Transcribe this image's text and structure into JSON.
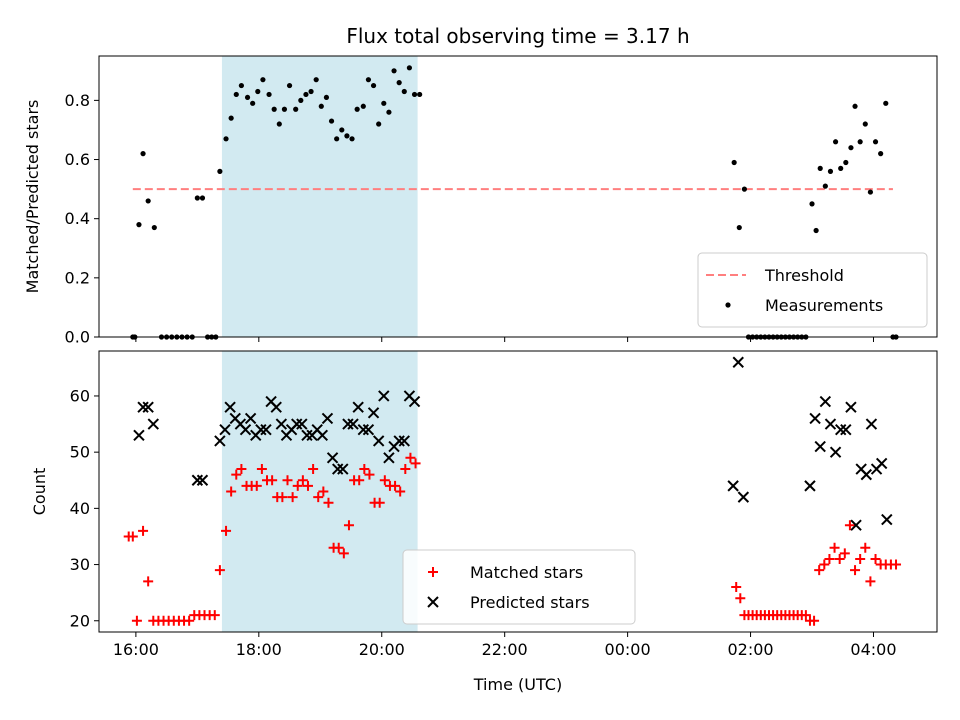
{
  "figure": {
    "title": "Flux total observing time = 3.17 h",
    "xlabel": "Time (UTC)"
  },
  "chart_data": [
    {
      "type": "scatter",
      "ylabel": "Matched/Predicted stars",
      "xlim": [
        "15:24",
        "05:02"
      ],
      "ylim": [
        0,
        0.95
      ],
      "yticks": [
        0.0,
        0.2,
        0.4,
        0.6,
        0.8
      ],
      "xticks": [
        "16:00",
        "18:00",
        "20:00",
        "22:00",
        "00:00",
        "02:00",
        "04:00"
      ],
      "show_xtick_labels": false,
      "shaded_interval": {
        "start": "17:24",
        "end": "20:35",
        "color": "#add8e6"
      },
      "legend_position": "lower right",
      "threshold": {
        "name": "Threshold",
        "value": 0.5,
        "from": "15:57",
        "to": "04:19",
        "color": "#ff7f7f",
        "style": "dashed"
      },
      "series": [
        {
          "name": "Measurements",
          "marker": "dot",
          "color": "#000000",
          "points": [
            [
              "15:57",
              0.0
            ],
            [
              "15:59",
              0.0
            ],
            [
              "16:03",
              0.38
            ],
            [
              "16:07",
              0.62
            ],
            [
              "16:12",
              0.46
            ],
            [
              "16:18",
              0.37
            ],
            [
              "16:25",
              0.0
            ],
            [
              "16:30",
              0.0
            ],
            [
              "16:35",
              0.0
            ],
            [
              "16:40",
              0.0
            ],
            [
              "16:45",
              0.0
            ],
            [
              "16:50",
              0.0
            ],
            [
              "16:55",
              0.0
            ],
            [
              "17:00",
              0.47
            ],
            [
              "17:05",
              0.47
            ],
            [
              "17:10",
              0.0
            ],
            [
              "17:14",
              0.0
            ],
            [
              "17:18",
              0.0
            ],
            [
              "17:22",
              0.56
            ],
            [
              "17:28",
              0.67
            ],
            [
              "17:33",
              0.74
            ],
            [
              "17:38",
              0.82
            ],
            [
              "17:43",
              0.85
            ],
            [
              "17:49",
              0.81
            ],
            [
              "17:54",
              0.79
            ],
            [
              "17:59",
              0.83
            ],
            [
              "18:04",
              0.87
            ],
            [
              "18:10",
              0.82
            ],
            [
              "18:15",
              0.77
            ],
            [
              "18:20",
              0.72
            ],
            [
              "18:25",
              0.77
            ],
            [
              "18:30",
              0.85
            ],
            [
              "18:36",
              0.77
            ],
            [
              "18:41",
              0.8
            ],
            [
              "18:46",
              0.82
            ],
            [
              "18:51",
              0.83
            ],
            [
              "18:56",
              0.87
            ],
            [
              "19:01",
              0.78
            ],
            [
              "19:06",
              0.81
            ],
            [
              "19:11",
              0.73
            ],
            [
              "19:16",
              0.67
            ],
            [
              "19:21",
              0.7
            ],
            [
              "19:26",
              0.68
            ],
            [
              "19:31",
              0.67
            ],
            [
              "19:36",
              0.77
            ],
            [
              "19:42",
              0.78
            ],
            [
              "19:47",
              0.87
            ],
            [
              "19:52",
              0.85
            ],
            [
              "19:57",
              0.72
            ],
            [
              "20:02",
              0.79
            ],
            [
              "20:07",
              0.76
            ],
            [
              "20:12",
              0.9
            ],
            [
              "20:17",
              0.86
            ],
            [
              "20:22",
              0.83
            ],
            [
              "20:27",
              0.91
            ],
            [
              "20:32",
              0.82
            ],
            [
              "20:37",
              0.82
            ],
            [
              "01:44",
              0.59
            ],
            [
              "01:49",
              0.37
            ],
            [
              "01:54",
              0.5
            ],
            [
              "01:58",
              0.0
            ],
            [
              "02:02",
              0.0
            ],
            [
              "02:06",
              0.0
            ],
            [
              "02:10",
              0.0
            ],
            [
              "02:14",
              0.0
            ],
            [
              "02:18",
              0.0
            ],
            [
              "02:22",
              0.0
            ],
            [
              "02:26",
              0.0
            ],
            [
              "02:30",
              0.0
            ],
            [
              "02:34",
              0.0
            ],
            [
              "02:38",
              0.0
            ],
            [
              "02:42",
              0.0
            ],
            [
              "02:46",
              0.0
            ],
            [
              "02:50",
              0.0
            ],
            [
              "02:54",
              0.0
            ],
            [
              "03:00",
              0.45
            ],
            [
              "03:04",
              0.36
            ],
            [
              "03:08",
              0.57
            ],
            [
              "03:13",
              0.51
            ],
            [
              "03:18",
              0.56
            ],
            [
              "03:23",
              0.66
            ],
            [
              "03:28",
              0.57
            ],
            [
              "03:33",
              0.59
            ],
            [
              "03:38",
              0.64
            ],
            [
              "03:42",
              0.78
            ],
            [
              "03:47",
              0.66
            ],
            [
              "03:52",
              0.72
            ],
            [
              "03:57",
              0.49
            ],
            [
              "04:02",
              0.66
            ],
            [
              "04:07",
              0.62
            ],
            [
              "04:12",
              0.79
            ],
            [
              "04:19",
              0.0
            ],
            [
              "04:22",
              0.0
            ]
          ]
        }
      ]
    },
    {
      "type": "scatter",
      "ylabel": "Count",
      "xlim": [
        "15:24",
        "05:02"
      ],
      "ylim": [
        18,
        68
      ],
      "yticks": [
        20,
        30,
        40,
        50,
        60
      ],
      "xticks": [
        "16:00",
        "18:00",
        "20:00",
        "22:00",
        "00:00",
        "02:00",
        "04:00"
      ],
      "shaded_interval": {
        "start": "17:24",
        "end": "20:35",
        "color": "#add8e6"
      },
      "legend_position": "lower center",
      "series": [
        {
          "name": "Matched stars",
          "marker": "plus",
          "color": "#ff0000",
          "points": [
            [
              "15:53",
              35
            ],
            [
              "15:57",
              35
            ],
            [
              "16:01",
              20
            ],
            [
              "16:07",
              36
            ],
            [
              "16:12",
              27
            ],
            [
              "16:17",
              20
            ],
            [
              "16:22",
              20
            ],
            [
              "16:27",
              20
            ],
            [
              "16:32",
              20
            ],
            [
              "16:37",
              20
            ],
            [
              "16:42",
              20
            ],
            [
              "16:47",
              20
            ],
            [
              "16:52",
              20
            ],
            [
              "16:57",
              21
            ],
            [
              "17:02",
              21
            ],
            [
              "17:07",
              21
            ],
            [
              "17:12",
              21
            ],
            [
              "17:17",
              21
            ],
            [
              "17:22",
              29
            ],
            [
              "17:28",
              36
            ],
            [
              "17:33",
              43
            ],
            [
              "17:38",
              46
            ],
            [
              "17:43",
              47
            ],
            [
              "17:48",
              44
            ],
            [
              "17:53",
              44
            ],
            [
              "17:58",
              44
            ],
            [
              "18:03",
              47
            ],
            [
              "18:08",
              45
            ],
            [
              "18:13",
              45
            ],
            [
              "18:18",
              42
            ],
            [
              "18:23",
              42
            ],
            [
              "18:28",
              45
            ],
            [
              "18:33",
              42
            ],
            [
              "18:38",
              44
            ],
            [
              "18:43",
              45
            ],
            [
              "18:48",
              44
            ],
            [
              "18:53",
              47
            ],
            [
              "18:58",
              42
            ],
            [
              "19:03",
              43
            ],
            [
              "19:08",
              41
            ],
            [
              "19:13",
              33
            ],
            [
              "19:18",
              33
            ],
            [
              "19:23",
              32
            ],
            [
              "19:28",
              37
            ],
            [
              "19:33",
              45
            ],
            [
              "19:38",
              45
            ],
            [
              "19:43",
              47
            ],
            [
              "19:48",
              46
            ],
            [
              "19:53",
              41
            ],
            [
              "19:58",
              41
            ],
            [
              "20:03",
              45
            ],
            [
              "20:08",
              44
            ],
            [
              "20:13",
              44
            ],
            [
              "20:18",
              43
            ],
            [
              "20:23",
              47
            ],
            [
              "20:28",
              49
            ],
            [
              "20:33",
              48
            ],
            [
              "01:46",
              26
            ],
            [
              "01:50",
              24
            ],
            [
              "01:54",
              21
            ],
            [
              "01:58",
              21
            ],
            [
              "02:02",
              21
            ],
            [
              "02:06",
              21
            ],
            [
              "02:10",
              21
            ],
            [
              "02:14",
              21
            ],
            [
              "02:18",
              21
            ],
            [
              "02:22",
              21
            ],
            [
              "02:26",
              21
            ],
            [
              "02:30",
              21
            ],
            [
              "02:34",
              21
            ],
            [
              "02:38",
              21
            ],
            [
              "02:42",
              21
            ],
            [
              "02:46",
              21
            ],
            [
              "02:50",
              21
            ],
            [
              "02:54",
              21
            ],
            [
              "02:58",
              20
            ],
            [
              "03:02",
              20
            ],
            [
              "03:07",
              29
            ],
            [
              "03:12",
              30
            ],
            [
              "03:17",
              31
            ],
            [
              "03:22",
              33
            ],
            [
              "03:27",
              31
            ],
            [
              "03:32",
              32
            ],
            [
              "03:37",
              37
            ],
            [
              "03:42",
              29
            ],
            [
              "03:47",
              31
            ],
            [
              "03:52",
              33
            ],
            [
              "03:57",
              27
            ],
            [
              "04:02",
              31
            ],
            [
              "04:07",
              30
            ],
            [
              "04:12",
              30
            ],
            [
              "04:17",
              30
            ],
            [
              "04:22",
              30
            ]
          ]
        },
        {
          "name": "Predicted stars",
          "marker": "x",
          "color": "#000000",
          "points": [
            [
              "16:03",
              53
            ],
            [
              "16:07",
              58
            ],
            [
              "16:12",
              58
            ],
            [
              "16:17",
              55
            ],
            [
              "17:00",
              45
            ],
            [
              "17:05",
              45
            ],
            [
              "17:22",
              52
            ],
            [
              "17:27",
              54
            ],
            [
              "17:32",
              58
            ],
            [
              "17:37",
              56
            ],
            [
              "17:42",
              55
            ],
            [
              "17:47",
              54
            ],
            [
              "17:52",
              56
            ],
            [
              "17:57",
              53
            ],
            [
              "18:02",
              54
            ],
            [
              "18:07",
              54
            ],
            [
              "18:12",
              59
            ],
            [
              "18:17",
              58
            ],
            [
              "18:22",
              55
            ],
            [
              "18:27",
              53
            ],
            [
              "18:32",
              54
            ],
            [
              "18:37",
              55
            ],
            [
              "18:42",
              55
            ],
            [
              "18:47",
              53
            ],
            [
              "18:52",
              53
            ],
            [
              "18:57",
              54
            ],
            [
              "19:02",
              53
            ],
            [
              "19:07",
              56
            ],
            [
              "19:12",
              49
            ],
            [
              "19:17",
              47
            ],
            [
              "19:22",
              47
            ],
            [
              "19:27",
              55
            ],
            [
              "19:32",
              55
            ],
            [
              "19:37",
              58
            ],
            [
              "19:42",
              54
            ],
            [
              "19:47",
              54
            ],
            [
              "19:52",
              57
            ],
            [
              "19:57",
              52
            ],
            [
              "20:02",
              60
            ],
            [
              "20:07",
              49
            ],
            [
              "20:12",
              51
            ],
            [
              "20:17",
              52
            ],
            [
              "20:22",
              52
            ],
            [
              "20:27",
              60
            ],
            [
              "20:32",
              59
            ],
            [
              "01:43",
              44
            ],
            [
              "01:48",
              66
            ],
            [
              "01:53",
              42
            ],
            [
              "02:58",
              44
            ],
            [
              "03:03",
              56
            ],
            [
              "03:08",
              51
            ],
            [
              "03:13",
              59
            ],
            [
              "03:18",
              55
            ],
            [
              "03:23",
              50
            ],
            [
              "03:28",
              54
            ],
            [
              "03:33",
              54
            ],
            [
              "03:38",
              58
            ],
            [
              "03:43",
              37
            ],
            [
              "03:48",
              47
            ],
            [
              "03:53",
              46
            ],
            [
              "03:58",
              55
            ],
            [
              "04:03",
              47
            ],
            [
              "04:08",
              48
            ],
            [
              "04:13",
              38
            ]
          ]
        }
      ]
    }
  ]
}
